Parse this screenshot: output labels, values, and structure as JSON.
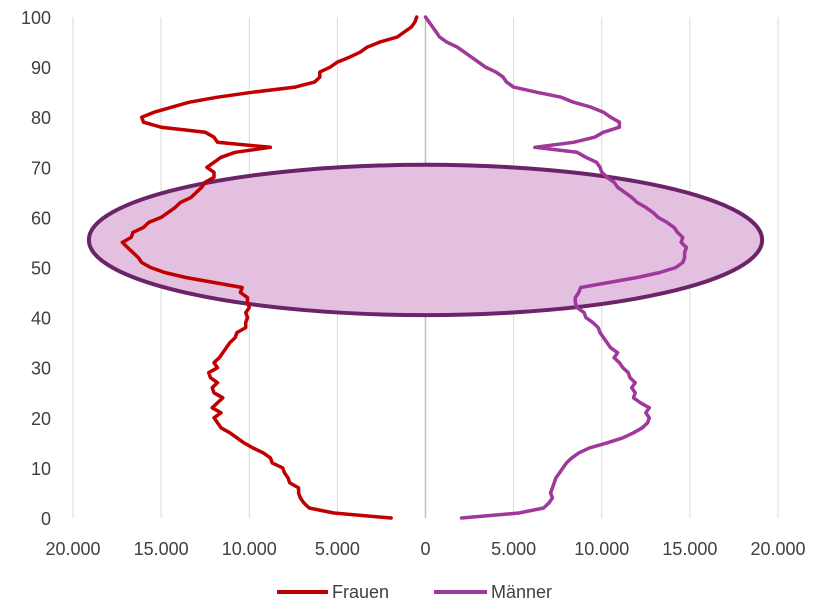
{
  "chart_data": {
    "type": "line",
    "title": "",
    "xlabel": "",
    "ylabel": "",
    "xlim": [
      -20000,
      20000
    ],
    "ylim": [
      0,
      100
    ],
    "x_ticks": [
      -20000,
      -15000,
      -10000,
      -5000,
      0,
      5000,
      10000,
      15000,
      20000
    ],
    "x_tick_labels": [
      "20.000",
      "15.000",
      "10.000",
      "5.000",
      "0",
      "5.000",
      "10.000",
      "15.000",
      "20.000"
    ],
    "y_ticks": [
      0,
      10,
      20,
      30,
      40,
      50,
      60,
      70,
      80,
      90,
      100
    ],
    "y_tick_labels": [
      "0",
      "10",
      "20",
      "30",
      "40",
      "50",
      "60",
      "70",
      "80",
      "90",
      "100"
    ],
    "grid": "vertical",
    "legend_position": "bottom",
    "note": "Frauen plotted to the left (negative side); axis labels show absolute values",
    "series": [
      {
        "name": "Frauen",
        "color": "#c00000",
        "points": [
          [
            0,
            -1950
          ],
          [
            1,
            -5200
          ],
          [
            2,
            -6600
          ],
          [
            3,
            -6900
          ],
          [
            4,
            -7100
          ],
          [
            5,
            -7200
          ],
          [
            6,
            -7200
          ],
          [
            7,
            -7700
          ],
          [
            8,
            -7800
          ],
          [
            9,
            -8000
          ],
          [
            10,
            -8100
          ],
          [
            11,
            -8700
          ],
          [
            12,
            -8800
          ],
          [
            13,
            -9200
          ],
          [
            14,
            -9800
          ],
          [
            15,
            -10300
          ],
          [
            16,
            -10700
          ],
          [
            17,
            -11100
          ],
          [
            18,
            -11600
          ],
          [
            19,
            -11800
          ],
          [
            20,
            -12000
          ],
          [
            21,
            -11600
          ],
          [
            22,
            -12100
          ],
          [
            23,
            -11800
          ],
          [
            24,
            -11500
          ],
          [
            25,
            -12000
          ],
          [
            26,
            -12100
          ],
          [
            27,
            -11800
          ],
          [
            28,
            -12200
          ],
          [
            29,
            -12300
          ],
          [
            30,
            -11800
          ],
          [
            31,
            -12000
          ],
          [
            32,
            -11700
          ],
          [
            33,
            -11500
          ],
          [
            34,
            -11300
          ],
          [
            35,
            -11100
          ],
          [
            36,
            -10800
          ],
          [
            37,
            -10700
          ],
          [
            38,
            -10200
          ],
          [
            39,
            -10200
          ],
          [
            40,
            -10100
          ],
          [
            41,
            -10200
          ],
          [
            42,
            -10000
          ],
          [
            43,
            -10100
          ],
          [
            44,
            -10100
          ],
          [
            45,
            -10500
          ],
          [
            46,
            -10400
          ],
          [
            47,
            -12000
          ],
          [
            48,
            -13600
          ],
          [
            49,
            -14800
          ],
          [
            50,
            -15600
          ],
          [
            51,
            -16100
          ],
          [
            52,
            -16300
          ],
          [
            53,
            -16600
          ],
          [
            54,
            -16900
          ],
          [
            55,
            -17200
          ],
          [
            56,
            -16700
          ],
          [
            57,
            -16600
          ],
          [
            58,
            -16000
          ],
          [
            59,
            -15700
          ],
          [
            60,
            -15000
          ],
          [
            61,
            -14600
          ],
          [
            62,
            -14200
          ],
          [
            63,
            -13900
          ],
          [
            64,
            -13300
          ],
          [
            65,
            -13000
          ],
          [
            66,
            -12700
          ],
          [
            67,
            -12500
          ],
          [
            68,
            -12000
          ],
          [
            69,
            -12000
          ],
          [
            70,
            -12400
          ],
          [
            71,
            -12000
          ],
          [
            72,
            -11600
          ],
          [
            73,
            -10800
          ],
          [
            74,
            -8800
          ],
          [
            75,
            -11800
          ],
          [
            76,
            -12000
          ],
          [
            77,
            -12500
          ],
          [
            78,
            -15000
          ],
          [
            79,
            -16000
          ],
          [
            80,
            -16100
          ],
          [
            81,
            -15400
          ],
          [
            82,
            -14400
          ],
          [
            83,
            -13400
          ],
          [
            84,
            -11800
          ],
          [
            85,
            -9800
          ],
          [
            86,
            -7400
          ],
          [
            87,
            -6300
          ],
          [
            88,
            -6000
          ],
          [
            89,
            -6000
          ],
          [
            90,
            -5400
          ],
          [
            91,
            -5000
          ],
          [
            92,
            -4300
          ],
          [
            93,
            -3700
          ],
          [
            94,
            -3300
          ],
          [
            95,
            -2600
          ],
          [
            96,
            -1600
          ],
          [
            97,
            -1200
          ],
          [
            98,
            -800
          ],
          [
            99,
            -600
          ],
          [
            100,
            -500
          ]
        ]
      },
      {
        "name": "Männer",
        "color": "#a0379b",
        "points": [
          [
            0,
            2050
          ],
          [
            1,
            5300
          ],
          [
            2,
            6700
          ],
          [
            3,
            7000
          ],
          [
            4,
            7200
          ],
          [
            5,
            7100
          ],
          [
            6,
            7200
          ],
          [
            7,
            7300
          ],
          [
            8,
            7400
          ],
          [
            9,
            7600
          ],
          [
            10,
            7800
          ],
          [
            11,
            8000
          ],
          [
            12,
            8300
          ],
          [
            13,
            8700
          ],
          [
            14,
            9300
          ],
          [
            15,
            10300
          ],
          [
            16,
            11200
          ],
          [
            17,
            11800
          ],
          [
            18,
            12300
          ],
          [
            19,
            12600
          ],
          [
            20,
            12700
          ],
          [
            21,
            12500
          ],
          [
            22,
            12700
          ],
          [
            23,
            12200
          ],
          [
            24,
            11800
          ],
          [
            25,
            11900
          ],
          [
            26,
            11700
          ],
          [
            27,
            11900
          ],
          [
            28,
            11600
          ],
          [
            29,
            11500
          ],
          [
            30,
            11200
          ],
          [
            31,
            11000
          ],
          [
            32,
            10700
          ],
          [
            33,
            10900
          ],
          [
            34,
            10500
          ],
          [
            35,
            10300
          ],
          [
            36,
            10100
          ],
          [
            37,
            9900
          ],
          [
            38,
            9800
          ],
          [
            39,
            9500
          ],
          [
            40,
            9100
          ],
          [
            41,
            9000
          ],
          [
            42,
            8600
          ],
          [
            43,
            8500
          ],
          [
            44,
            8500
          ],
          [
            45,
            8700
          ],
          [
            46,
            8800
          ],
          [
            47,
            10400
          ],
          [
            48,
            12000
          ],
          [
            49,
            13300
          ],
          [
            50,
            14200
          ],
          [
            51,
            14600
          ],
          [
            52,
            14700
          ],
          [
            53,
            14700
          ],
          [
            54,
            14800
          ],
          [
            55,
            14500
          ],
          [
            56,
            14600
          ],
          [
            57,
            14300
          ],
          [
            58,
            14100
          ],
          [
            59,
            13700
          ],
          [
            60,
            13200
          ],
          [
            61,
            12900
          ],
          [
            62,
            12500
          ],
          [
            63,
            12000
          ],
          [
            64,
            11700
          ],
          [
            65,
            11300
          ],
          [
            66,
            10900
          ],
          [
            67,
            10700
          ],
          [
            68,
            10300
          ],
          [
            69,
            10000
          ],
          [
            70,
            9900
          ],
          [
            71,
            9700
          ],
          [
            72,
            9100
          ],
          [
            73,
            8600
          ],
          [
            74,
            6200
          ],
          [
            75,
            8400
          ],
          [
            76,
            9600
          ],
          [
            77,
            10100
          ],
          [
            78,
            11000
          ],
          [
            79,
            11000
          ],
          [
            80,
            10500
          ],
          [
            81,
            10100
          ],
          [
            82,
            9400
          ],
          [
            83,
            8400
          ],
          [
            84,
            7700
          ],
          [
            85,
            6300
          ],
          [
            86,
            5000
          ],
          [
            87,
            4600
          ],
          [
            88,
            4400
          ],
          [
            89,
            4000
          ],
          [
            90,
            3400
          ],
          [
            91,
            3000
          ],
          [
            92,
            2600
          ],
          [
            93,
            2200
          ],
          [
            94,
            1800
          ],
          [
            95,
            1200
          ],
          [
            96,
            800
          ],
          [
            97,
            600
          ],
          [
            98,
            400
          ],
          [
            99,
            200
          ],
          [
            100,
            0
          ]
        ]
      }
    ],
    "highlight_ellipse": {
      "center_x": 0,
      "center_y": 55.5,
      "radius_x": 19100,
      "radius_y": 15,
      "fill": "#e3bfe0",
      "stroke": "#6b2468"
    }
  }
}
